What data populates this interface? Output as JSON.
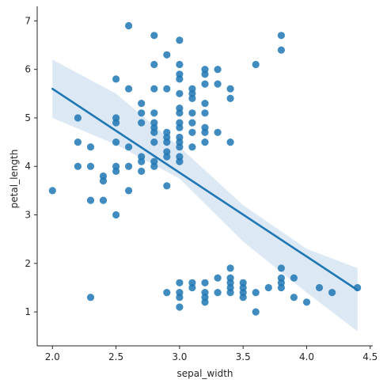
{
  "chart_data": {
    "type": "scatter",
    "title": "",
    "xlabel": "sepal_width",
    "ylabel": "petal_length",
    "xlim": [
      1.88,
      4.52
    ],
    "ylim": [
      0.3,
      7.3
    ],
    "xticks": [
      2.0,
      2.5,
      3.0,
      3.5,
      4.0,
      4.5
    ],
    "xtick_labels": [
      "2.0",
      "2.5",
      "3.0",
      "3.5",
      "4.0",
      "4.5"
    ],
    "yticks": [
      1,
      2,
      3,
      4,
      5,
      6,
      7
    ],
    "ytick_labels": [
      "1",
      "2",
      "3",
      "4",
      "5",
      "6",
      "7"
    ],
    "grid": false,
    "colors": {
      "points": "#1f77b4",
      "line": "#1f77b4",
      "band": "#c5d9ec"
    },
    "regression": {
      "x": [
        2.0,
        4.4
      ],
      "y": [
        5.6,
        1.45
      ],
      "ci_upper": [
        [
          2.0,
          6.2
        ],
        [
          2.5,
          5.5
        ],
        [
          3.0,
          4.4
        ],
        [
          3.5,
          3.2
        ],
        [
          4.0,
          2.3
        ],
        [
          4.4,
          1.9
        ]
      ],
      "ci_lower": [
        [
          2.0,
          5.0
        ],
        [
          2.5,
          4.45
        ],
        [
          3.0,
          3.75
        ],
        [
          3.5,
          2.45
        ],
        [
          4.0,
          1.4
        ],
        [
          4.4,
          0.6
        ]
      ]
    },
    "points": [
      [
        2.0,
        3.5
      ],
      [
        2.2,
        5.0
      ],
      [
        2.2,
        4.5
      ],
      [
        2.2,
        4.0
      ],
      [
        2.3,
        4.4
      ],
      [
        2.3,
        4.0
      ],
      [
        2.3,
        3.3
      ],
      [
        2.3,
        1.3
      ],
      [
        2.4,
        3.8
      ],
      [
        2.4,
        3.7
      ],
      [
        2.4,
        3.3
      ],
      [
        2.5,
        5.8
      ],
      [
        2.5,
        5.0
      ],
      [
        2.5,
        4.9
      ],
      [
        2.5,
        4.5
      ],
      [
        2.5,
        4.0
      ],
      [
        2.5,
        3.9
      ],
      [
        2.5,
        3.0
      ],
      [
        2.6,
        6.9
      ],
      [
        2.6,
        5.6
      ],
      [
        2.6,
        4.4
      ],
      [
        2.6,
        4.0
      ],
      [
        2.6,
        3.5
      ],
      [
        2.7,
        5.3
      ],
      [
        2.7,
        5.1
      ],
      [
        2.7,
        4.9
      ],
      [
        2.7,
        4.2
      ],
      [
        2.7,
        4.1
      ],
      [
        2.7,
        3.9
      ],
      [
        2.8,
        6.7
      ],
      [
        2.8,
        6.1
      ],
      [
        2.8,
        5.6
      ],
      [
        2.8,
        5.1
      ],
      [
        2.8,
        4.9
      ],
      [
        2.8,
        4.8
      ],
      [
        2.8,
        4.7
      ],
      [
        2.8,
        4.5
      ],
      [
        2.8,
        4.1
      ],
      [
        2.8,
        4.0
      ],
      [
        2.9,
        6.3
      ],
      [
        2.9,
        5.6
      ],
      [
        2.9,
        4.7
      ],
      [
        2.9,
        4.6
      ],
      [
        2.9,
        4.5
      ],
      [
        2.9,
        4.3
      ],
      [
        2.9,
        4.2
      ],
      [
        2.9,
        3.6
      ],
      [
        2.9,
        1.4
      ],
      [
        3.0,
        6.6
      ],
      [
        3.0,
        6.1
      ],
      [
        3.0,
        5.9
      ],
      [
        3.0,
        5.8
      ],
      [
        3.0,
        5.5
      ],
      [
        3.0,
        5.2
      ],
      [
        3.0,
        5.1
      ],
      [
        3.0,
        4.9
      ],
      [
        3.0,
        4.8
      ],
      [
        3.0,
        4.6
      ],
      [
        3.0,
        4.5
      ],
      [
        3.0,
        4.4
      ],
      [
        3.0,
        4.2
      ],
      [
        3.0,
        4.1
      ],
      [
        3.0,
        1.6
      ],
      [
        3.0,
        1.4
      ],
      [
        3.0,
        1.3
      ],
      [
        3.0,
        1.1
      ],
      [
        3.1,
        5.6
      ],
      [
        3.1,
        5.5
      ],
      [
        3.1,
        5.4
      ],
      [
        3.1,
        5.1
      ],
      [
        3.1,
        4.9
      ],
      [
        3.1,
        4.7
      ],
      [
        3.1,
        4.4
      ],
      [
        3.1,
        1.6
      ],
      [
        3.1,
        1.5
      ],
      [
        3.2,
        6.0
      ],
      [
        3.2,
        5.9
      ],
      [
        3.2,
        5.7
      ],
      [
        3.2,
        5.3
      ],
      [
        3.2,
        5.1
      ],
      [
        3.2,
        4.8
      ],
      [
        3.2,
        4.7
      ],
      [
        3.2,
        4.5
      ],
      [
        3.2,
        1.6
      ],
      [
        3.2,
        1.4
      ],
      [
        3.2,
        1.3
      ],
      [
        3.2,
        1.2
      ],
      [
        3.3,
        6.0
      ],
      [
        3.3,
        5.7
      ],
      [
        3.3,
        4.7
      ],
      [
        3.3,
        1.7
      ],
      [
        3.3,
        1.4
      ],
      [
        3.4,
        5.6
      ],
      [
        3.4,
        5.4
      ],
      [
        3.4,
        4.5
      ],
      [
        3.4,
        1.9
      ],
      [
        3.4,
        1.7
      ],
      [
        3.4,
        1.6
      ],
      [
        3.4,
        1.5
      ],
      [
        3.4,
        1.4
      ],
      [
        3.5,
        1.6
      ],
      [
        3.5,
        1.5
      ],
      [
        3.5,
        1.4
      ],
      [
        3.5,
        1.3
      ],
      [
        3.6,
        6.1
      ],
      [
        3.6,
        1.4
      ],
      [
        3.6,
        1.0
      ],
      [
        3.7,
        1.5
      ],
      [
        3.8,
        6.7
      ],
      [
        3.8,
        6.4
      ],
      [
        3.8,
        1.9
      ],
      [
        3.8,
        1.7
      ],
      [
        3.8,
        1.6
      ],
      [
        3.8,
        1.5
      ],
      [
        3.9,
        1.7
      ],
      [
        3.9,
        1.3
      ],
      [
        4.0,
        1.2
      ],
      [
        4.1,
        1.5
      ],
      [
        4.2,
        1.4
      ],
      [
        4.4,
        1.5
      ]
    ]
  }
}
